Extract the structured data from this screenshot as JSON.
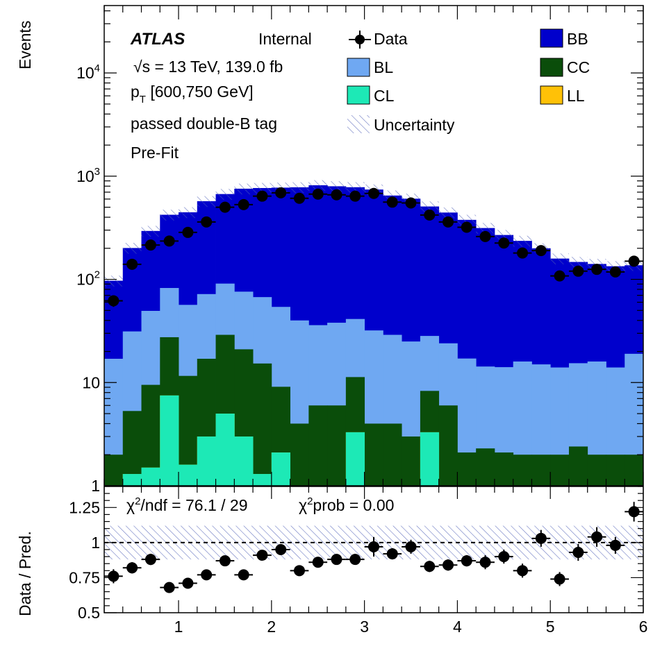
{
  "chart_data": [
    {
      "type": "stacked-histogram",
      "panel": "main",
      "ylabel": "Events",
      "yscale": "log",
      "ylim": [
        1,
        45000
      ],
      "xlim": [
        0.2,
        6.0
      ],
      "bin_edges": [
        0.2,
        0.4,
        0.6,
        0.8,
        1.0,
        1.2,
        1.4,
        1.6,
        1.8,
        2.0,
        2.2,
        2.4,
        2.6,
        2.8,
        3.0,
        3.2,
        3.4,
        3.6,
        3.8,
        4.0,
        4.2,
        4.4,
        4.6,
        4.8,
        5.0,
        5.2,
        5.4,
        5.6,
        5.8,
        6.0
      ],
      "yticks": [
        {
          "value": 1,
          "label": "1"
        },
        {
          "value": 10,
          "label": "10"
        },
        {
          "value": 100,
          "label": "10",
          "sup": "2"
        },
        {
          "value": 1000,
          "label": "10",
          "sup": "3"
        },
        {
          "value": 10000,
          "label": "10",
          "sup": "4"
        }
      ],
      "stack_order": [
        "CL",
        "LL",
        "CC",
        "BL",
        "BB"
      ],
      "series": [
        {
          "name": "CL",
          "color": "#1de9b6",
          "values": [
            0,
            1.3,
            1.5,
            7.5,
            1.6,
            3.0,
            5.0,
            3.0,
            1.3,
            2.1,
            1.0,
            1.0,
            1.0,
            3.3,
            1.0,
            1.0,
            1.0,
            3.3,
            1.0,
            1.0,
            1.0,
            1.0,
            1.0,
            1.0,
            1.0,
            1.0,
            1.0,
            1.0,
            1.0
          ]
        },
        {
          "name": "LL",
          "color": "#ffc107",
          "values": [
            0,
            0,
            0,
            0,
            0,
            0,
            0,
            0,
            0,
            0,
            0,
            0,
            0,
            0,
            0,
            0,
            0,
            0,
            0,
            0,
            0,
            0,
            0,
            0,
            0,
            0,
            0,
            0,
            0
          ]
        },
        {
          "name": "CC",
          "color": "#0a4d0a",
          "values": [
            2.0,
            4.0,
            8.0,
            20,
            10,
            14,
            24,
            18,
            14,
            7,
            3,
            5,
            5,
            8,
            3,
            3,
            2,
            5,
            5,
            1.1,
            1.3,
            1.1,
            1,
            1,
            1,
            1.4,
            1,
            1,
            1
          ]
        },
        {
          "name": "BL",
          "color": "#6fa8f2",
          "values": [
            15,
            26,
            40,
            55,
            45,
            55,
            62,
            55,
            52,
            45,
            36,
            30,
            32,
            30,
            28,
            25,
            22,
            20,
            18,
            15,
            12,
            12,
            14,
            13,
            12,
            13,
            14,
            12,
            17
          ]
        },
        {
          "name": "BB",
          "color": "#0000cc",
          "values": [
            80,
            170,
            245,
            340,
            390,
            500,
            580,
            680,
            700,
            720,
            740,
            780,
            760,
            740,
            710,
            620,
            580,
            480,
            420,
            360,
            300,
            255,
            220,
            185,
            145,
            132,
            125,
            120,
            118
          ]
        }
      ],
      "data": {
        "name": "Data",
        "x": [
          0.3,
          0.5,
          0.7,
          0.9,
          1.1,
          1.3,
          1.5,
          1.7,
          1.9,
          2.1,
          2.3,
          2.5,
          2.7,
          2.9,
          3.1,
          3.3,
          3.5,
          3.7,
          3.9,
          4.1,
          4.3,
          4.5,
          4.7,
          4.9,
          5.1,
          5.3,
          5.5,
          5.7,
          5.9
        ],
        "y": [
          62,
          140,
          215,
          235,
          285,
          360,
          500,
          530,
          640,
          690,
          610,
          670,
          660,
          640,
          680,
          560,
          550,
          420,
          360,
          320,
          260,
          225,
          180,
          190,
          108,
          120,
          125,
          118,
          150
        ]
      },
      "legend": [
        {
          "name": "Data",
          "kind": "marker"
        },
        {
          "name": "BB",
          "kind": "box",
          "color": "#0000cc"
        },
        {
          "name": "BL",
          "kind": "box",
          "color": "#6fa8f2"
        },
        {
          "name": "CC",
          "kind": "box",
          "color": "#0a4d0a"
        },
        {
          "name": "CL",
          "kind": "box",
          "color": "#1de9b6"
        },
        {
          "name": "LL",
          "kind": "box",
          "color": "#ffc107"
        },
        {
          "name": "Uncertainty",
          "kind": "hatch"
        }
      ],
      "annotations": {
        "experiment": "ATLAS",
        "status": "Internal",
        "energy_lumi": "√s = 13 TeV, 139.0 fb",
        "pt_prefix": "p",
        "pt_sub": "T",
        "pt_range": " [600,750 GeV]",
        "selection": "passed double-B tag",
        "fit_state": "Pre-Fit"
      }
    },
    {
      "type": "ratio",
      "panel": "ratio",
      "ylabel": "Data / Pred.",
      "ylim": [
        0.5,
        1.4
      ],
      "xlim": [
        0.2,
        6.0
      ],
      "yticks": [
        {
          "value": 0.5,
          "label": "0.5"
        },
        {
          "value": 0.75,
          "label": "0.75"
        },
        {
          "value": 1,
          "label": "1"
        },
        {
          "value": 1.25,
          "label": "1.25"
        }
      ],
      "xticks": [
        {
          "value": 1,
          "label": "1"
        },
        {
          "value": 2,
          "label": "2"
        },
        {
          "value": 3,
          "label": "3"
        },
        {
          "value": 4,
          "label": "4"
        },
        {
          "value": 5,
          "label": "5"
        },
        {
          "value": 6,
          "label": "6"
        }
      ],
      "reference_line": 1,
      "uncertainty_band": [
        0.88,
        1.12
      ],
      "x": [
        0.3,
        0.5,
        0.7,
        0.9,
        1.1,
        1.3,
        1.5,
        1.7,
        1.9,
        2.1,
        2.3,
        2.5,
        2.7,
        2.9,
        3.1,
        3.3,
        3.5,
        3.7,
        3.9,
        4.1,
        4.3,
        4.5,
        4.7,
        4.9,
        5.1,
        5.3,
        5.5,
        5.7,
        5.9
      ],
      "y": [
        0.76,
        0.82,
        0.88,
        0.68,
        0.71,
        0.77,
        0.87,
        0.77,
        0.91,
        0.95,
        0.8,
        0.86,
        0.88,
        0.88,
        0.97,
        0.92,
        0.97,
        0.83,
        0.84,
        0.87,
        0.86,
        0.9,
        0.8,
        1.03,
        0.74,
        0.93,
        1.04,
        0.98,
        1.22
      ],
      "yerr": [
        0.05,
        0.04,
        0.04,
        0.03,
        0.03,
        0.03,
        0.03,
        0.03,
        0.03,
        0.03,
        0.03,
        0.03,
        0.03,
        0.03,
        0.07,
        0.04,
        0.05,
        0.04,
        0.04,
        0.04,
        0.05,
        0.05,
        0.05,
        0.06,
        0.05,
        0.06,
        0.07,
        0.06,
        0.07
      ],
      "stats": {
        "chi_sym": "χ",
        "chi_sup": "2",
        "chi_text": "/ndf = 76.1 / 29",
        "prob_sym": "χ",
        "prob_sup": "2",
        "prob_text": "prob = 0.00"
      }
    }
  ]
}
